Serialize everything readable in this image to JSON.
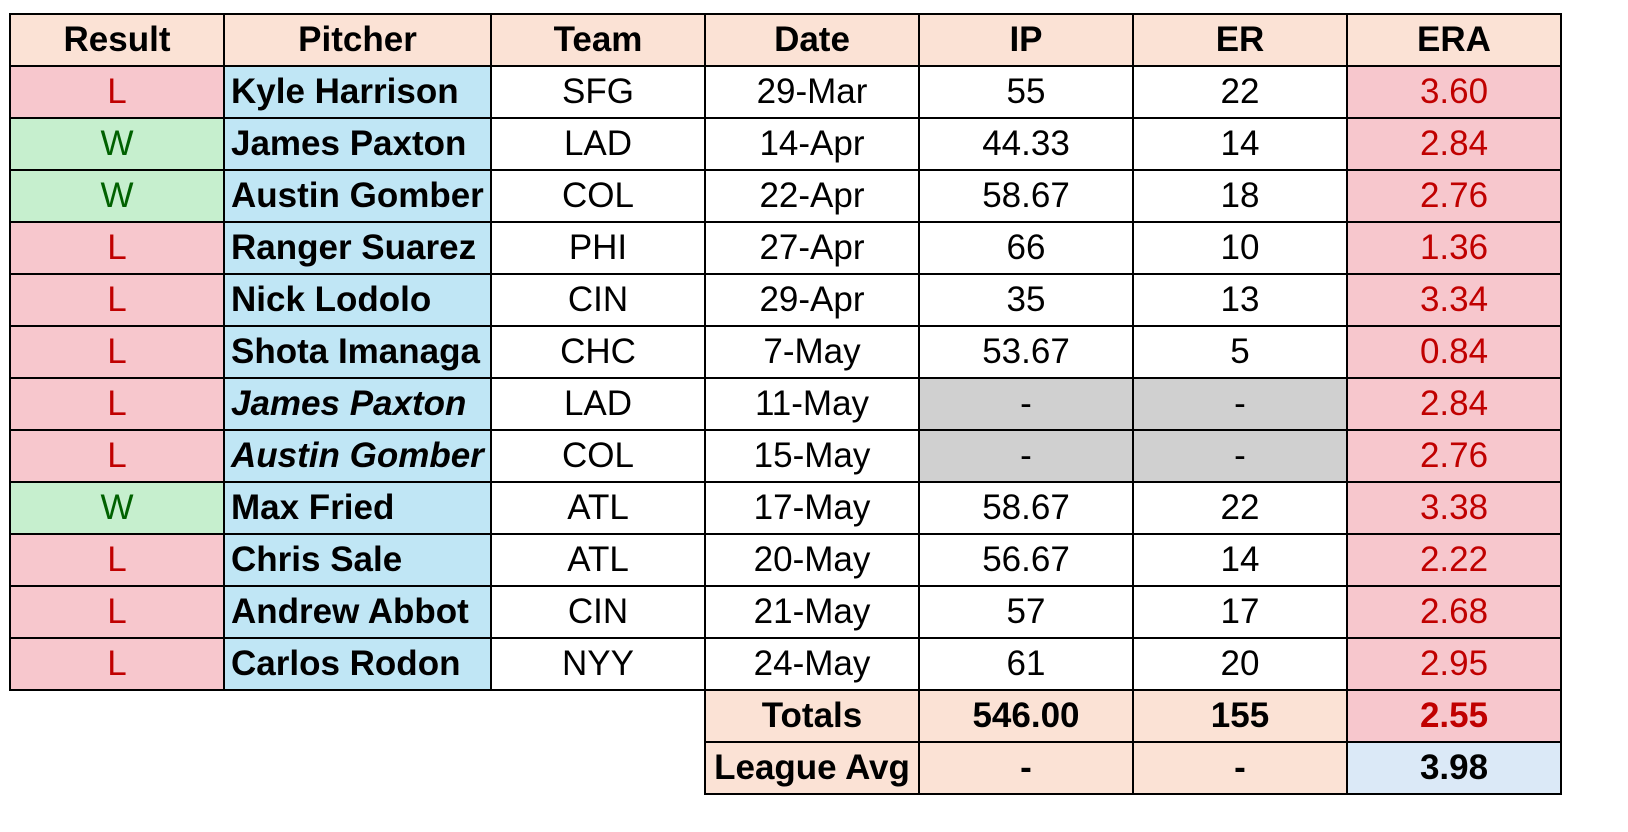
{
  "chart_data": {
    "type": "table",
    "columns": [
      "Result",
      "Pitcher",
      "Team",
      "Date",
      "IP",
      "ER",
      "ERA"
    ],
    "rows": [
      {
        "result": "L",
        "pitcher": "Kyle Harrison",
        "team": "SFG",
        "date": "29-Mar",
        "ip": "55",
        "er": "22",
        "era": "3.60",
        "repeat": false
      },
      {
        "result": "W",
        "pitcher": "James Paxton",
        "team": "LAD",
        "date": "14-Apr",
        "ip": "44.33",
        "er": "14",
        "era": "2.84",
        "repeat": false
      },
      {
        "result": "W",
        "pitcher": "Austin Gomber",
        "team": "COL",
        "date": "22-Apr",
        "ip": "58.67",
        "er": "18",
        "era": "2.76",
        "repeat": false
      },
      {
        "result": "L",
        "pitcher": "Ranger Suarez",
        "team": "PHI",
        "date": "27-Apr",
        "ip": "66",
        "er": "10",
        "era": "1.36",
        "repeat": false
      },
      {
        "result": "L",
        "pitcher": "Nick Lodolo",
        "team": "CIN",
        "date": "29-Apr",
        "ip": "35",
        "er": "13",
        "era": "3.34",
        "repeat": false
      },
      {
        "result": "L",
        "pitcher": "Shota Imanaga",
        "team": "CHC",
        "date": "7-May",
        "ip": "53.67",
        "er": "5",
        "era": "0.84",
        "repeat": false
      },
      {
        "result": "L",
        "pitcher": "James Paxton",
        "team": "LAD",
        "date": "11-May",
        "ip": "-",
        "er": "-",
        "era": "2.84",
        "repeat": true
      },
      {
        "result": "L",
        "pitcher": "Austin Gomber",
        "team": "COL",
        "date": "15-May",
        "ip": "-",
        "er": "-",
        "era": "2.76",
        "repeat": true
      },
      {
        "result": "W",
        "pitcher": "Max Fried",
        "team": "ATL",
        "date": "17-May",
        "ip": "58.67",
        "er": "22",
        "era": "3.38",
        "repeat": false
      },
      {
        "result": "L",
        "pitcher": "Chris Sale",
        "team": "ATL",
        "date": "20-May",
        "ip": "56.67",
        "er": "14",
        "era": "2.22",
        "repeat": false
      },
      {
        "result": "L",
        "pitcher": "Andrew Abbot",
        "team": "CIN",
        "date": "21-May",
        "ip": "57",
        "er": "17",
        "era": "2.68",
        "repeat": false
      },
      {
        "result": "L",
        "pitcher": "Carlos Rodon",
        "team": "NYY",
        "date": "24-May",
        "ip": "61",
        "er": "20",
        "era": "2.95",
        "repeat": false
      }
    ],
    "totals": {
      "label": "Totals",
      "ip": "546.00",
      "er": "155",
      "era": "2.55"
    },
    "league_avg": {
      "label": "League Avg",
      "ip": "-",
      "er": "-",
      "era": "3.98"
    }
  },
  "colors": {
    "header_bg": "#fbe2d5",
    "loss_bg": "#f7c7cd",
    "loss_text": "#c00000",
    "win_bg": "#c6efce",
    "win_text": "#006100",
    "pitcher_bg": "#c0e6f5",
    "blank_bg": "#d0d0d0",
    "league_era_bg": "#dbe9f7"
  }
}
